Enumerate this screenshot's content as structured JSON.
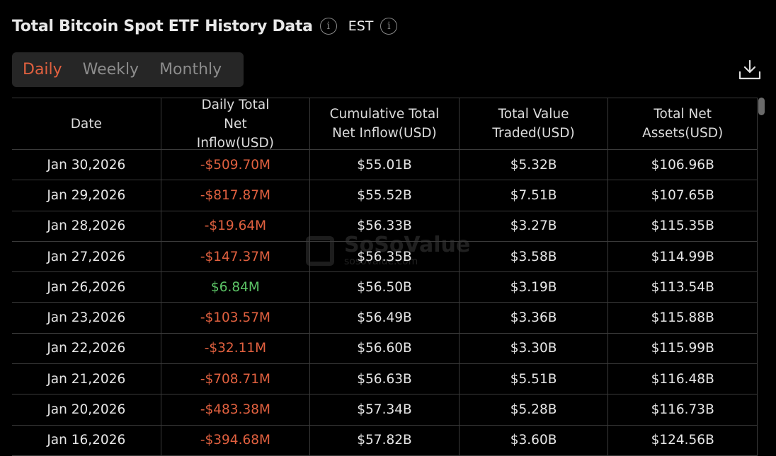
{
  "header": {
    "title": "Total Bitcoin Spot ETF History Data",
    "timezone": "EST",
    "info_icon": "info-circle-icon"
  },
  "tabs": [
    {
      "label": "Daily",
      "active": true
    },
    {
      "label": "Weekly",
      "active": false
    },
    {
      "label": "Monthly",
      "active": false
    }
  ],
  "download_icon": "download-icon",
  "colors": {
    "negative": "#e0603f",
    "positive": "#5cc466",
    "active_tab": "#e0603f",
    "background": "#000000"
  },
  "watermark": {
    "name": "SoSoValue",
    "url": "sosovalue.com"
  },
  "table": {
    "columns": [
      "Date",
      "Daily Total Net Inflow(USD)",
      "Cumulative Total Net Inflow(USD)",
      "Total Value Traded(USD)",
      "Total Net Assets(USD)"
    ],
    "rows": [
      [
        "Jan 30,2026",
        "-$509.70M",
        "$55.01B",
        "$5.32B",
        "$106.96B"
      ],
      [
        "Jan 29,2026",
        "-$817.87M",
        "$55.52B",
        "$7.51B",
        "$107.65B"
      ],
      [
        "Jan 28,2026",
        "-$19.64M",
        "$56.33B",
        "$3.27B",
        "$115.35B"
      ],
      [
        "Jan 27,2026",
        "-$147.37M",
        "$56.35B",
        "$3.58B",
        "$114.99B"
      ],
      [
        "Jan 26,2026",
        "$6.84M",
        "$56.50B",
        "$3.19B",
        "$113.54B"
      ],
      [
        "Jan 23,2026",
        "-$103.57M",
        "$56.49B",
        "$3.36B",
        "$115.88B"
      ],
      [
        "Jan 22,2026",
        "-$32.11M",
        "$56.60B",
        "$3.30B",
        "$115.99B"
      ],
      [
        "Jan 21,2026",
        "-$708.71M",
        "$56.63B",
        "$5.51B",
        "$116.48B"
      ],
      [
        "Jan 20,2026",
        "-$483.38M",
        "$57.34B",
        "$5.28B",
        "$116.73B"
      ],
      [
        "Jan 16,2026",
        "-$394.68M",
        "$57.82B",
        "$3.60B",
        "$124.56B"
      ]
    ]
  }
}
